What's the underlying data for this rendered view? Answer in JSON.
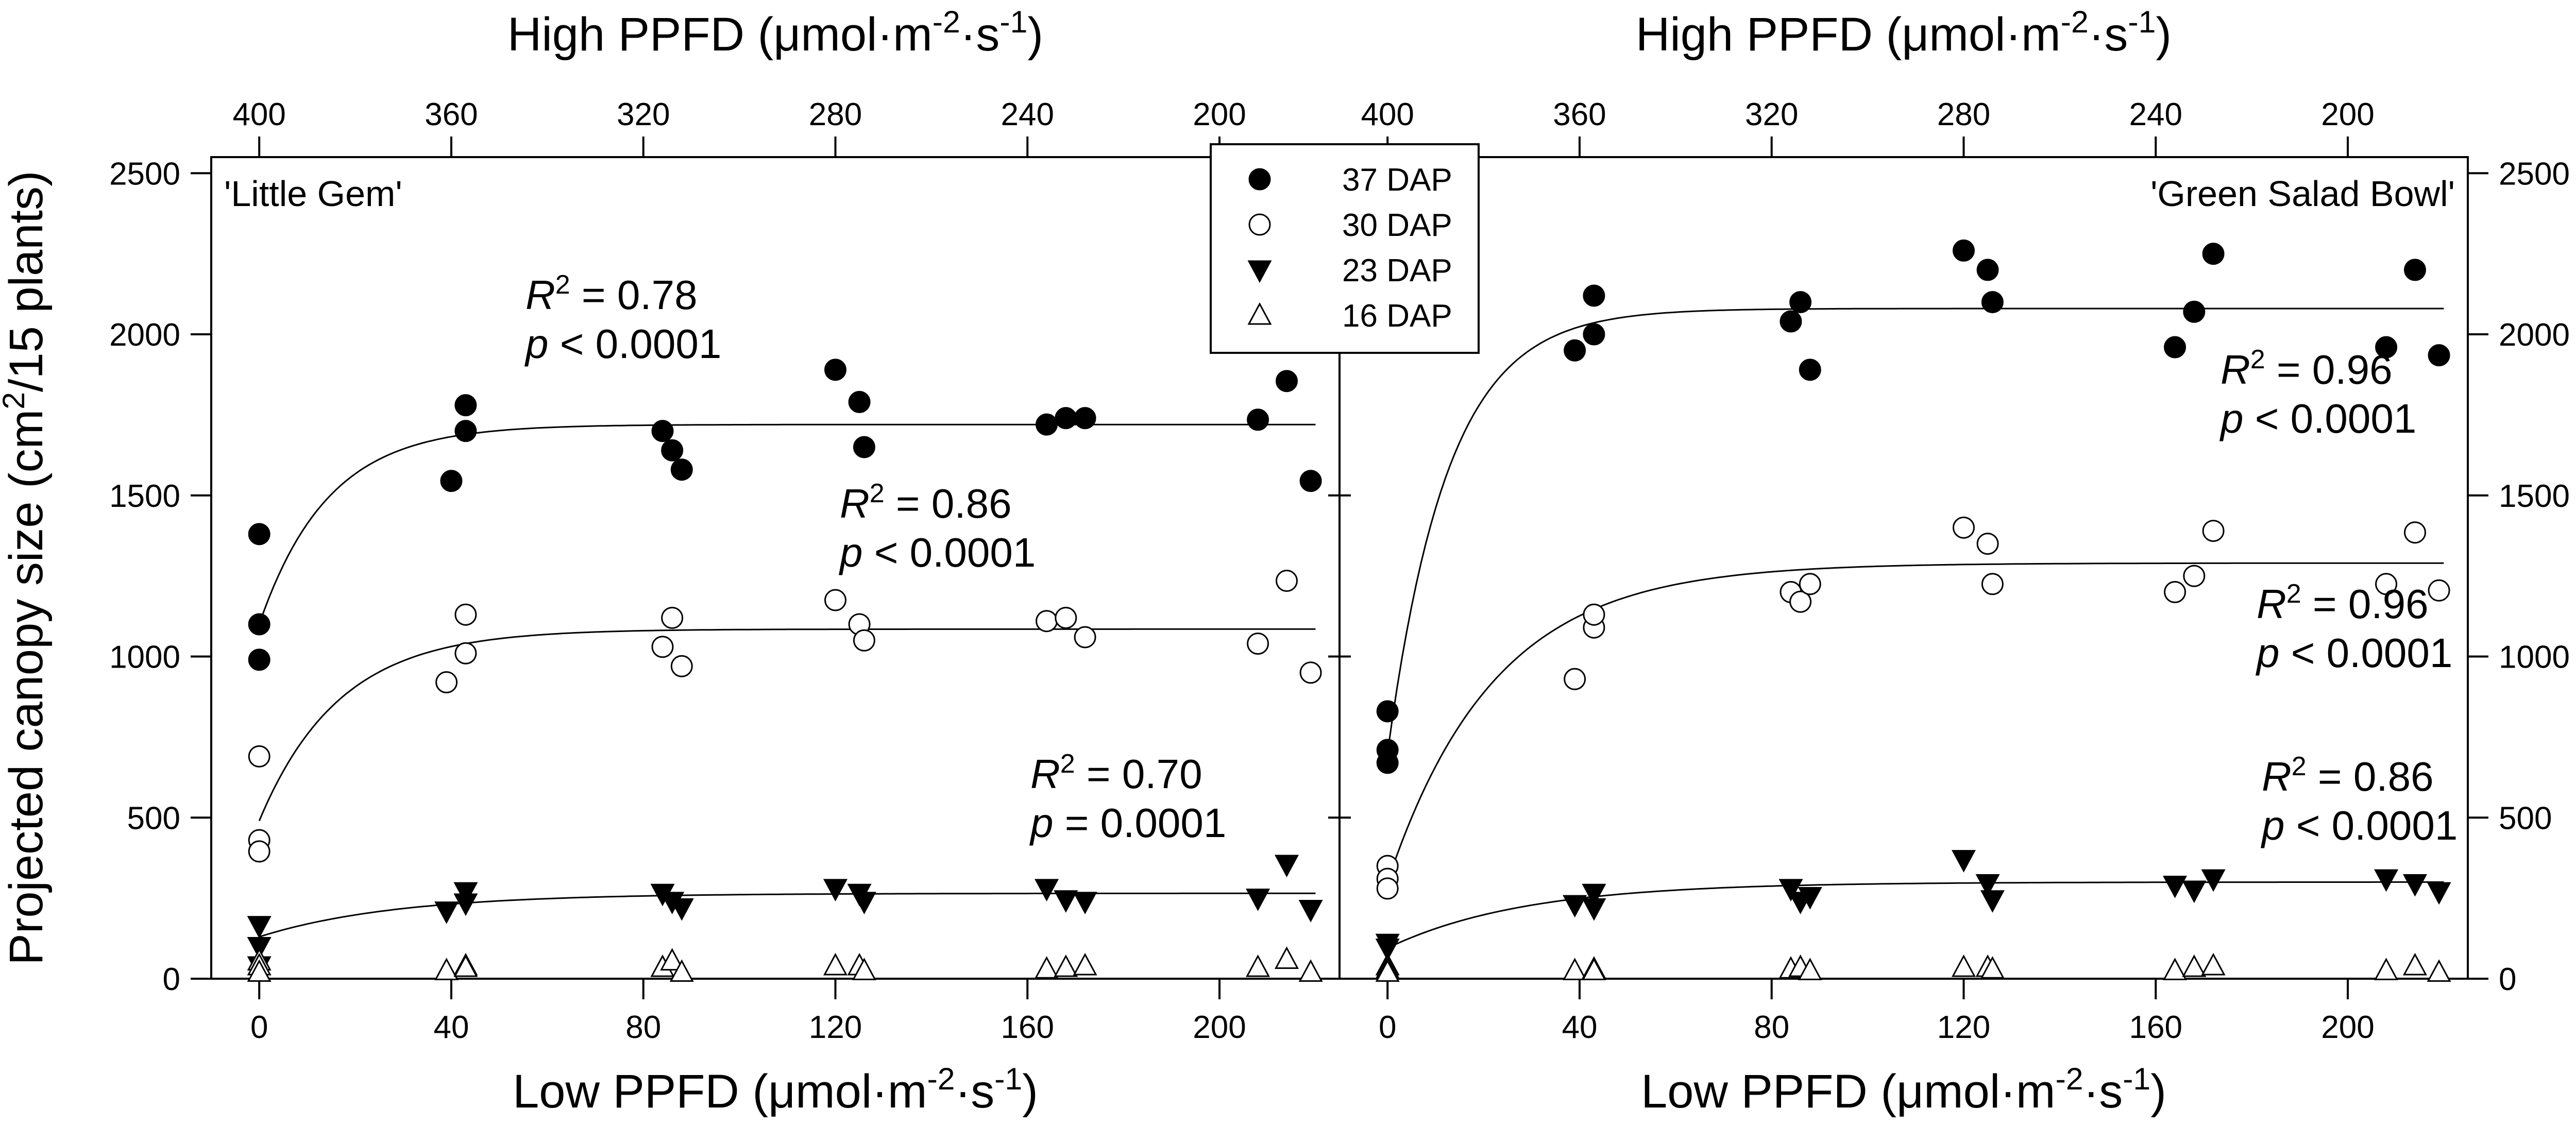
{
  "chart_data": [
    {
      "type": "scatter",
      "panel_label": "'Little Gem'",
      "xlabel_bottom": "Low PPFD (μmol·m⁻²·s⁻¹)",
      "xlabel_top": "High PPFD (μmol·m⁻²·s⁻¹)",
      "ylabel": "Projected canopy size (cm²/15 plants)",
      "xlim": [
        -10,
        225
      ],
      "ylim": [
        0,
        2550
      ],
      "x_ticks": [
        0,
        40,
        80,
        120,
        160,
        200
      ],
      "x_top_ticks": [
        "400",
        "360",
        "320",
        "280",
        "240",
        "200"
      ],
      "y_ticks": [
        0,
        500,
        1000,
        1500,
        2000,
        2500
      ],
      "series": [
        {
          "name": "37 DAP",
          "marker": "filled-circle",
          "fit": {
            "y0": 1100,
            "plateau": 1720,
            "k": 0.07
          },
          "annotation": {
            "r2": "0.78",
            "p": "< 0.0001"
          },
          "points": [
            [
              0,
              1380
            ],
            [
              0,
              1100
            ],
            [
              0,
              990
            ],
            [
              40,
              1545
            ],
            [
              43,
              1700
            ],
            [
              43,
              1780
            ],
            [
              84,
              1700
            ],
            [
              86,
              1640
            ],
            [
              88,
              1580
            ],
            [
              120,
              1890
            ],
            [
              125,
              1790
            ],
            [
              126,
              1650
            ],
            [
              164,
              1720
            ],
            [
              168,
              1740
            ],
            [
              172,
              1740
            ],
            [
              208,
              1735
            ],
            [
              214,
              1855
            ],
            [
              219,
              1545
            ]
          ]
        },
        {
          "name": "30 DAP",
          "marker": "open-circle",
          "fit": {
            "y0": 490,
            "plateau": 1085,
            "k": 0.06
          },
          "annotation": {
            "r2": "0.86",
            "p": "< 0.0001"
          },
          "points": [
            [
              0,
              690
            ],
            [
              0,
              430
            ],
            [
              0,
              395
            ],
            [
              39,
              920
            ],
            [
              43,
              1130
            ],
            [
              43,
              1010
            ],
            [
              84,
              1030
            ],
            [
              86,
              1120
            ],
            [
              88,
              970
            ],
            [
              120,
              1175
            ],
            [
              125,
              1100
            ],
            [
              126,
              1050
            ],
            [
              164,
              1110
            ],
            [
              168,
              1120
            ],
            [
              172,
              1060
            ],
            [
              208,
              1040
            ],
            [
              214,
              1235
            ],
            [
              219,
              950
            ]
          ]
        },
        {
          "name": "23 DAP",
          "marker": "filled-triangle-down",
          "fit": {
            "y0": 130,
            "plateau": 265,
            "k": 0.035
          },
          "annotation": {
            "r2": "0.70",
            "p": "= 0.0001"
          },
          "points": [
            [
              0,
              165
            ],
            [
              0,
              100
            ],
            [
              0,
              40
            ],
            [
              39,
              210
            ],
            [
              43,
              270
            ],
            [
              43,
              235
            ],
            [
              84,
              265
            ],
            [
              86,
              240
            ],
            [
              88,
              220
            ],
            [
              120,
              280
            ],
            [
              125,
              265
            ],
            [
              126,
              240
            ],
            [
              164,
              280
            ],
            [
              168,
              245
            ],
            [
              172,
              240
            ],
            [
              208,
              250
            ],
            [
              214,
              355
            ],
            [
              219,
              215
            ]
          ]
        },
        {
          "name": "16 DAP",
          "marker": "open-triangle-up",
          "points": [
            [
              0,
              55
            ],
            [
              0,
              40
            ],
            [
              0,
              20
            ],
            [
              39,
              25
            ],
            [
              43,
              40
            ],
            [
              43,
              35
            ],
            [
              84,
              35
            ],
            [
              86,
              55
            ],
            [
              88,
              20
            ],
            [
              120,
              40
            ],
            [
              125,
              40
            ],
            [
              126,
              25
            ],
            [
              164,
              30
            ],
            [
              168,
              35
            ],
            [
              172,
              40
            ],
            [
              208,
              35
            ],
            [
              214,
              60
            ],
            [
              219,
              20
            ]
          ]
        }
      ]
    },
    {
      "type": "scatter",
      "panel_label": "'Green Salad Bowl'",
      "xlabel_bottom": "Low PPFD (μmol·m⁻²·s⁻¹)",
      "xlabel_top": "High PPFD (μmol·m⁻²·s⁻¹)",
      "ylabel": "Projected canopy size (cm²/15 plants)",
      "xlim": [
        -10,
        225
      ],
      "ylim": [
        0,
        2550
      ],
      "x_ticks": [
        0,
        40,
        80,
        120,
        160,
        200
      ],
      "x_top_ticks": [
        "400",
        "360",
        "320",
        "280",
        "240",
        "200"
      ],
      "y_ticks": [
        0,
        500,
        1000,
        1500,
        2000,
        2500
      ],
      "series": [
        {
          "name": "37 DAP",
          "marker": "filled-circle",
          "fit": {
            "y0": 700,
            "plateau": 2080,
            "k": 0.08
          },
          "annotation": {
            "r2": "0.96",
            "p": "< 0.0001"
          },
          "points": [
            [
              0,
              830
            ],
            [
              0,
              710
            ],
            [
              0,
              670
            ],
            [
              39,
              1950
            ],
            [
              43,
              2000
            ],
            [
              43,
              2120
            ],
            [
              84,
              2040
            ],
            [
              86,
              2100
            ],
            [
              88,
              1890
            ],
            [
              120,
              2260
            ],
            [
              125,
              2200
            ],
            [
              126,
              2100
            ],
            [
              164,
              1960
            ],
            [
              168,
              2070
            ],
            [
              172,
              2250
            ],
            [
              208,
              1960
            ],
            [
              214,
              2200
            ],
            [
              219,
              1935
            ]
          ]
        },
        {
          "name": "30 DAP",
          "marker": "open-circle",
          "fit": {
            "y0": 300,
            "plateau": 1290,
            "k": 0.045
          },
          "annotation": {
            "r2": "0.96",
            "p": "< 0.0001"
          },
          "points": [
            [
              0,
              350
            ],
            [
              0,
              310
            ],
            [
              0,
              280
            ],
            [
              39,
              930
            ],
            [
              43,
              1090
            ],
            [
              43,
              1130
            ],
            [
              84,
              1200
            ],
            [
              86,
              1170
            ],
            [
              88,
              1225
            ],
            [
              120,
              1400
            ],
            [
              125,
              1350
            ],
            [
              126,
              1225
            ],
            [
              164,
              1200
            ],
            [
              168,
              1250
            ],
            [
              172,
              1390
            ],
            [
              208,
              1225
            ],
            [
              214,
              1385
            ],
            [
              219,
              1205
            ]
          ]
        },
        {
          "name": "23 DAP",
          "marker": "filled-triangle-down",
          "fit": {
            "y0": 95,
            "plateau": 300,
            "k": 0.035
          },
          "annotation": {
            "r2": "0.86",
            "p": "< 0.0001"
          },
          "points": [
            [
              0,
              110
            ],
            [
              0,
              95
            ],
            [
              39,
              230
            ],
            [
              43,
              265
            ],
            [
              43,
              220
            ],
            [
              84,
              280
            ],
            [
              86,
              240
            ],
            [
              88,
              255
            ],
            [
              120,
              370
            ],
            [
              125,
              295
            ],
            [
              126,
              245
            ],
            [
              164,
              290
            ],
            [
              168,
              275
            ],
            [
              172,
              310
            ],
            [
              208,
              310
            ],
            [
              214,
              295
            ],
            [
              219,
              270
            ]
          ]
        },
        {
          "name": "16 DAP",
          "marker": "open-triangle-up",
          "points": [
            [
              0,
              40
            ],
            [
              0,
              30
            ],
            [
              0,
              20
            ],
            [
              39,
              25
            ],
            [
              43,
              30
            ],
            [
              43,
              25
            ],
            [
              84,
              30
            ],
            [
              86,
              35
            ],
            [
              88,
              25
            ],
            [
              120,
              35
            ],
            [
              125,
              35
            ],
            [
              126,
              30
            ],
            [
              164,
              25
            ],
            [
              168,
              35
            ],
            [
              172,
              40
            ],
            [
              208,
              25
            ],
            [
              214,
              40
            ],
            [
              219,
              20
            ]
          ]
        }
      ]
    }
  ],
  "legend": {
    "placement": "top-center",
    "items": [
      "37 DAP",
      "30 DAP",
      "23 DAP",
      "16 DAP"
    ]
  }
}
